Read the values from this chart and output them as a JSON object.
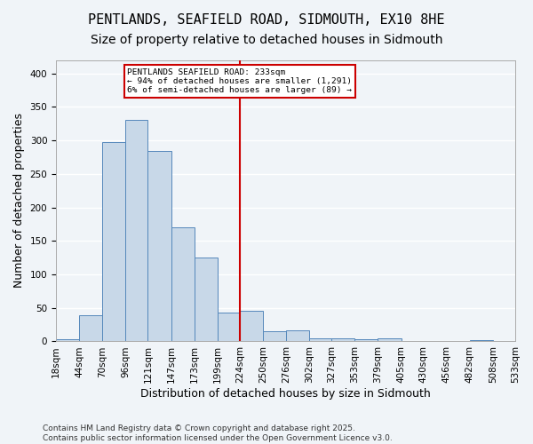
{
  "title": "PENTLANDS, SEAFIELD ROAD, SIDMOUTH, EX10 8HE",
  "subtitle": "Size of property relative to detached houses in Sidmouth",
  "xlabel": "Distribution of detached houses by size in Sidmouth",
  "ylabel": "Number of detached properties",
  "bar_color": "#c8d8e8",
  "bar_edge_color": "#5588bb",
  "background_color": "#f0f4f8",
  "grid_color": "#ffffff",
  "annotation_line_color": "#cc0000",
  "annotation_box_color": "#cc0000",
  "annotation_text": "PENTLANDS SEAFIELD ROAD: 233sqm\n← 94% of detached houses are smaller (1,291)\n6% of semi-detached houses are larger (89) →",
  "vline_x": 224,
  "bins": [
    18,
    44,
    70,
    96,
    121,
    147,
    173,
    199,
    224,
    250,
    276,
    302,
    327,
    353,
    379,
    405,
    430,
    456,
    482,
    508,
    533
  ],
  "bin_labels": [
    "18sqm",
    "44sqm",
    "70sqm",
    "96sqm",
    "121sqm",
    "147sqm",
    "173sqm",
    "199sqm",
    "224sqm",
    "250sqm",
    "276sqm",
    "302sqm",
    "327sqm",
    "353sqm",
    "379sqm",
    "405sqm",
    "430sqm",
    "456sqm",
    "482sqm",
    "508sqm",
    "533sqm"
  ],
  "values": [
    3,
    39,
    297,
    331,
    284,
    170,
    125,
    43,
    46,
    15,
    16,
    4,
    5,
    3,
    5,
    1,
    0,
    0,
    2,
    0
  ],
  "ylim": [
    0,
    420
  ],
  "yticks": [
    0,
    50,
    100,
    150,
    200,
    250,
    300,
    350,
    400
  ],
  "footnote": "Contains HM Land Registry data © Crown copyright and database right 2025.\nContains public sector information licensed under the Open Government Licence v3.0.",
  "title_fontsize": 11,
  "subtitle_fontsize": 10,
  "label_fontsize": 9,
  "tick_fontsize": 7.5,
  "footnote_fontsize": 6.5
}
